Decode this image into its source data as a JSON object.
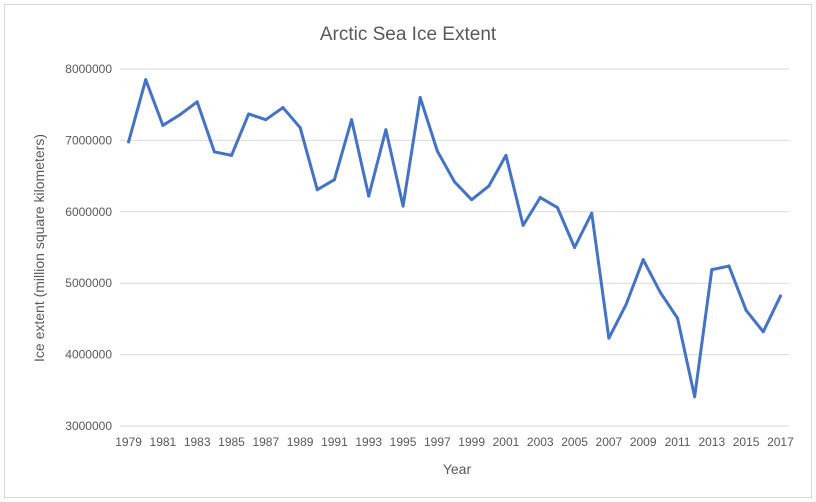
{
  "chart_data": {
    "type": "line",
    "title": "Arctic Sea Ice Extent",
    "xlabel": "Year",
    "ylabel": "Ice extent (million square kilometers)",
    "ylim": [
      3000000,
      8000000
    ],
    "yticks": [
      "3000000",
      "4000000",
      "5000000",
      "6000000",
      "7000000",
      "8000000"
    ],
    "xticks": [
      "1979",
      "1981",
      "1983",
      "1985",
      "1987",
      "1989",
      "1991",
      "1993",
      "1995",
      "1997",
      "1999",
      "2001",
      "2003",
      "2005",
      "2007",
      "2009",
      "2011",
      "2013",
      "2015",
      "2017"
    ],
    "grid": "horizontal",
    "legend": "none",
    "series_color": "#4472c4",
    "x": [
      1979,
      1980,
      1981,
      1982,
      1983,
      1984,
      1985,
      1986,
      1987,
      1988,
      1989,
      1990,
      1991,
      1992,
      1993,
      1994,
      1995,
      1996,
      1997,
      1998,
      1999,
      2000,
      2001,
      2002,
      2003,
      2004,
      2005,
      2006,
      2007,
      2008,
      2009,
      2010,
      2011,
      2012,
      2013,
      2014,
      2015,
      2016,
      2017
    ],
    "series": [
      {
        "values": [
          6980000,
          7850000,
          7210000,
          7360000,
          7540000,
          6840000,
          6790000,
          7370000,
          7290000,
          7460000,
          7180000,
          6310000,
          6450000,
          7290000,
          6220000,
          7150000,
          6080000,
          7600000,
          6850000,
          6420000,
          6170000,
          6360000,
          6790000,
          5810000,
          6200000,
          6060000,
          5500000,
          5980000,
          4230000,
          4700000,
          5330000,
          4870000,
          4510000,
          3410000,
          5190000,
          5240000,
          4620000,
          4320000,
          4820000
        ]
      }
    ]
  }
}
